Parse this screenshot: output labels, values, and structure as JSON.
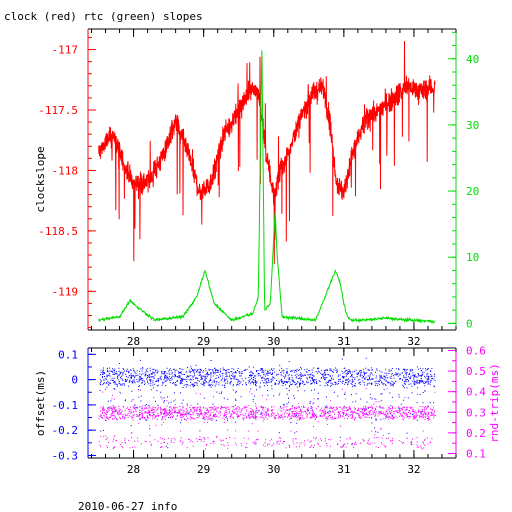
{
  "page": {
    "title": "clock (red) rtc (green) slopes",
    "footer": "2010-06-27 info"
  },
  "colors": {
    "clock": "#ff0000",
    "rtc": "#00dd00",
    "offset": "#0000ff",
    "rndtrip": "#ff00ff",
    "axis": "#000000"
  },
  "chart_data": [
    {
      "type": "line",
      "title": "clock (red) rtc (green) slopes",
      "xlabel": "",
      "ylabel_left": "clockslope",
      "ylabel_right": "",
      "xlim": [
        27.35,
        32.6
      ],
      "ylim_left": [
        -119.32,
        -116.83
      ],
      "ylim_right": [
        -1,
        44.5
      ],
      "x_ticks": [
        28,
        29,
        30,
        31,
        32
      ],
      "x_tick_labels": [
        "28",
        "29",
        "30",
        "31",
        "32"
      ],
      "y_left_ticks": [
        -117,
        -117.5,
        -118,
        -118.5,
        -119
      ],
      "y_left_tick_labels": [
        "-117",
        "-117.5",
        "-118",
        "-118.5",
        "-119"
      ],
      "y_right_ticks": [
        0,
        10,
        20,
        30,
        40
      ],
      "y_right_tick_labels": [
        "0",
        "10",
        "20",
        "30",
        "40"
      ],
      "series": [
        {
          "name": "clock",
          "axis": "left",
          "x": [
            27.5,
            27.7,
            27.9,
            28.0,
            28.2,
            28.4,
            28.6,
            28.8,
            28.95,
            29.1,
            29.3,
            29.5,
            29.7,
            29.8,
            29.9,
            30.0,
            30.1,
            30.3,
            30.5,
            30.7,
            30.8,
            30.9,
            31.0,
            31.1,
            31.3,
            31.5,
            31.7,
            31.9,
            32.1,
            32.3
          ],
          "y": [
            -117.85,
            -117.7,
            -118.0,
            -118.1,
            -118.1,
            -117.9,
            -117.6,
            -117.9,
            -118.2,
            -118.1,
            -117.7,
            -117.5,
            -117.3,
            -117.4,
            -117.9,
            -118.2,
            -118.0,
            -117.7,
            -117.4,
            -117.3,
            -117.6,
            -118.1,
            -118.2,
            -117.9,
            -117.6,
            -117.5,
            -117.4,
            -117.3,
            -117.35,
            -117.3
          ]
        },
        {
          "name": "rtc",
          "axis": "right",
          "x": [
            27.5,
            27.8,
            27.95,
            28.05,
            28.3,
            28.7,
            28.9,
            29.02,
            29.15,
            29.4,
            29.7,
            29.78,
            29.83,
            29.87,
            29.95,
            30.02,
            30.05,
            30.12,
            30.3,
            30.6,
            30.88,
            30.95,
            31.0,
            31.05,
            31.1,
            31.3,
            31.6,
            31.9,
            32.1,
            32.3
          ],
          "y": [
            0.5,
            1.0,
            3.5,
            2.5,
            0.5,
            1.0,
            4.0,
            8.0,
            3.0,
            0.5,
            1.5,
            4.0,
            42.0,
            2.0,
            3.0,
            17.0,
            10.0,
            1.0,
            0.8,
            0.5,
            8.0,
            6.0,
            3.0,
            1.0,
            0.5,
            0.5,
            0.8,
            0.5,
            0.4,
            0.3
          ]
        }
      ]
    },
    {
      "type": "scatter",
      "xlabel": "",
      "ylabel_left": "offset(ms)",
      "ylabel_right": "rnd-trip(ms)",
      "xlim": [
        27.35,
        32.6
      ],
      "ylim_left": [
        -0.31,
        0.125
      ],
      "ylim_right": [
        0.078,
        0.612
      ],
      "x_ticks": [
        28,
        29,
        30,
        31,
        32
      ],
      "x_tick_labels": [
        "28",
        "29",
        "30",
        "31",
        "32"
      ],
      "y_left_ticks": [
        0.1,
        0,
        -0.1,
        -0.2,
        -0.3
      ],
      "y_left_tick_labels": [
        "0.1",
        "0",
        "-0.1",
        "-0.2",
        "-0.3"
      ],
      "y_right_ticks": [
        0.6,
        0.5,
        0.4,
        0.3,
        0.2,
        0.1
      ],
      "y_right_tick_labels": [
        "0.6",
        "0.5",
        "0.4",
        "0.3",
        "0.2",
        "0.1"
      ],
      "series": [
        {
          "name": "offset",
          "axis": "left",
          "x_range": [
            27.5,
            32.3
          ],
          "center": 0.0,
          "band": [
            -0.02,
            0.045
          ],
          "extent": [
            -0.28,
            0.09
          ]
        },
        {
          "name": "rnd-trip",
          "axis": "right",
          "x_range": [
            27.5,
            32.3
          ],
          "center": 0.3,
          "band": [
            0.27,
            0.33
          ],
          "extent": [
            0.12,
            0.42
          ]
        }
      ]
    }
  ]
}
